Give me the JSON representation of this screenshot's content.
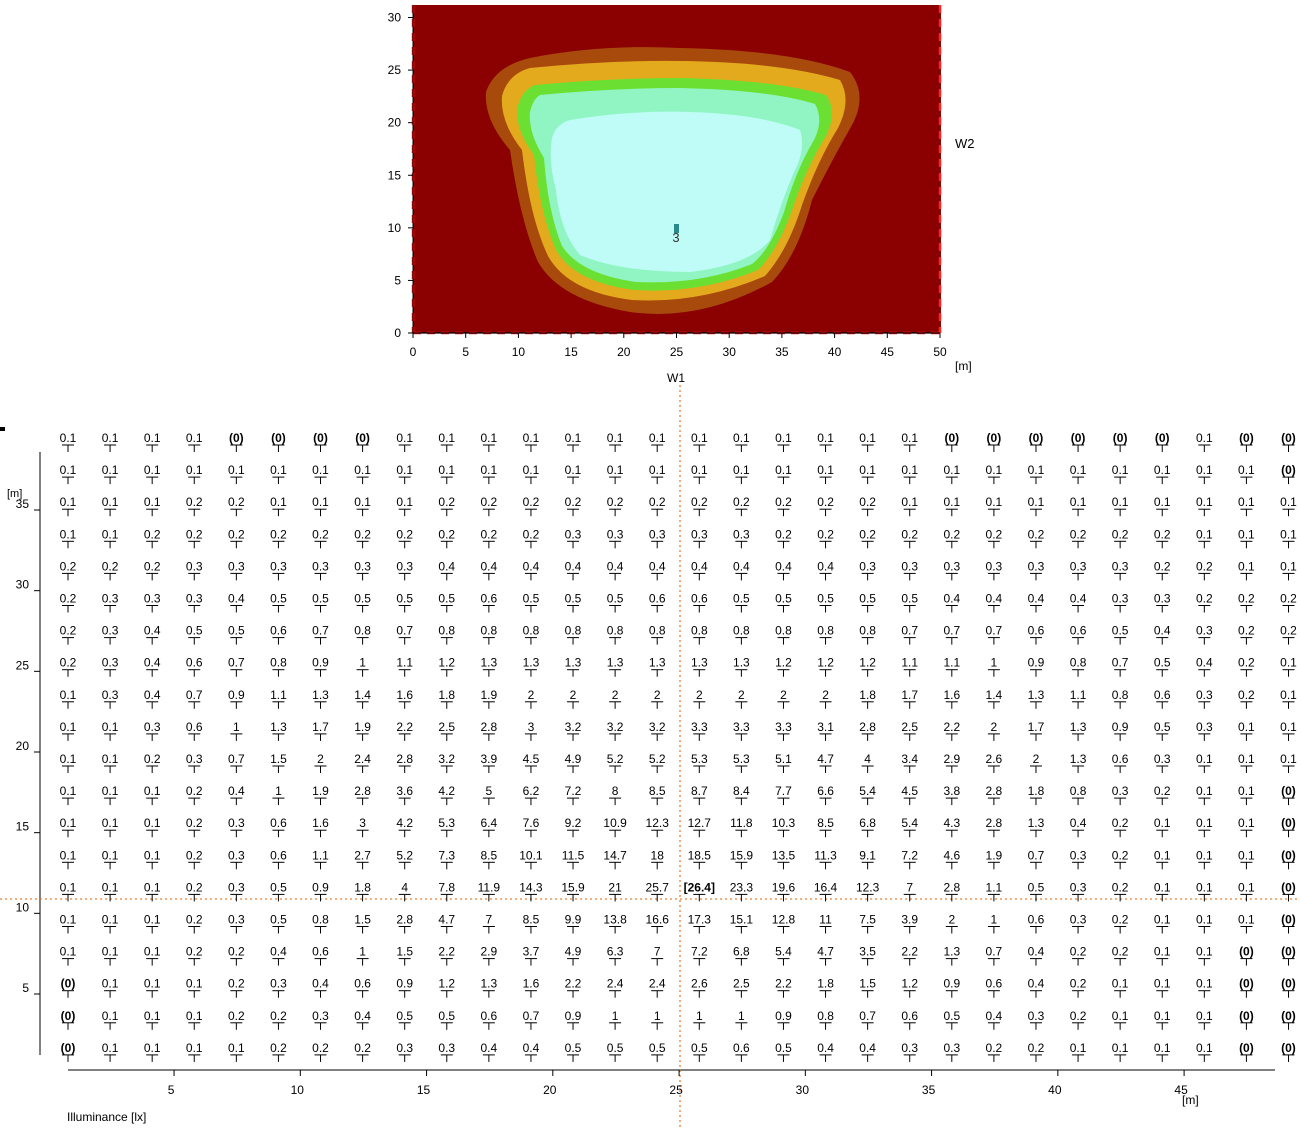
{
  "chart_data": [
    {
      "type": "heatmap",
      "title": "",
      "x_ticks": [
        "0",
        "5",
        "10",
        "15",
        "20",
        "25",
        "30",
        "35",
        "40",
        "45",
        "50"
      ],
      "y_ticks": [
        "0",
        "5",
        "10",
        "15",
        "20",
        "25",
        "30"
      ],
      "unit_label": "[m]",
      "wall_labels": {
        "bottom": "W1",
        "right": "W2"
      },
      "xlim": [
        0,
        50
      ],
      "ylim": [
        0,
        31
      ],
      "source_label": "3",
      "source_position": [
        25,
        10
      ],
      "color_levels": [
        "#8b0000",
        "#a84a0c",
        "#e4aa1d",
        "#6be032",
        "#90f5c3",
        "#bffcf7"
      ]
    },
    {
      "type": "table",
      "title": "",
      "xlabel": "Illuminance [lx]",
      "unit_label": "[m]",
      "x_ticks": [
        "5",
        "10",
        "15",
        "20",
        "25",
        "30",
        "35",
        "40",
        "45"
      ],
      "y_ticks": [
        "5",
        "10",
        "15",
        "20",
        "25",
        "30",
        "35"
      ],
      "columns_x_start": 0.8,
      "columns_x_step": 1.6667,
      "grid_rows": [
        [
          "0.1",
          "0.1",
          "0.1",
          "0.1",
          "(0)",
          "(0)",
          "(0)",
          "(0)",
          "0.1",
          "0.1",
          "0.1",
          "0.1",
          "0.1",
          "0.1",
          "0.1",
          "0.1",
          "0.1",
          "0.1",
          "0.1",
          "0.1",
          "0.1",
          "(0)",
          "(0)",
          "(0)",
          "(0)",
          "(0)",
          "(0)",
          "0.1",
          "(0)",
          "(0)"
        ],
        [
          "0.1",
          "0.1",
          "0.1",
          "0.1",
          "0.1",
          "0.1",
          "0.1",
          "0.1",
          "0.1",
          "0.1",
          "0.1",
          "0.1",
          "0.1",
          "0.1",
          "0.1",
          "0.1",
          "0.1",
          "0.1",
          "0.1",
          "0.1",
          "0.1",
          "0.1",
          "0.1",
          "0.1",
          "0.1",
          "0.1",
          "0.1",
          "0.1",
          "0.1",
          "(0)"
        ],
        [
          "0.1",
          "0.1",
          "0.1",
          "0.2",
          "0.2",
          "0.1",
          "0.1",
          "0.1",
          "0.1",
          "0.2",
          "0.2",
          "0.2",
          "0.2",
          "0.2",
          "0.2",
          "0.2",
          "0.2",
          "0.2",
          "0.2",
          "0.2",
          "0.1",
          "0.1",
          "0.1",
          "0.1",
          "0.1",
          "0.1",
          "0.1",
          "0.1",
          "0.1",
          "0.1"
        ],
        [
          "0.1",
          "0.1",
          "0.2",
          "0.2",
          "0.2",
          "0.2",
          "0.2",
          "0.2",
          "0.2",
          "0.2",
          "0.2",
          "0.2",
          "0.3",
          "0.3",
          "0.3",
          "0.3",
          "0.3",
          "0.2",
          "0.2",
          "0.2",
          "0.2",
          "0.2",
          "0.2",
          "0.2",
          "0.2",
          "0.2",
          "0.2",
          "0.1",
          "0.1",
          "0.1"
        ],
        [
          "0.2",
          "0.2",
          "0.2",
          "0.3",
          "0.3",
          "0.3",
          "0.3",
          "0.3",
          "0.3",
          "0.4",
          "0.4",
          "0.4",
          "0.4",
          "0.4",
          "0.4",
          "0.4",
          "0.4",
          "0.4",
          "0.4",
          "0.3",
          "0.3",
          "0.3",
          "0.3",
          "0.3",
          "0.3",
          "0.3",
          "0.2",
          "0.2",
          "0.1",
          "0.1"
        ],
        [
          "0.2",
          "0.3",
          "0.3",
          "0.3",
          "0.4",
          "0.5",
          "0.5",
          "0.5",
          "0.5",
          "0.5",
          "0.6",
          "0.5",
          "0.5",
          "0.5",
          "0.6",
          "0.6",
          "0.5",
          "0.5",
          "0.5",
          "0.5",
          "0.5",
          "0.4",
          "0.4",
          "0.4",
          "0.4",
          "0.3",
          "0.3",
          "0.2",
          "0.2",
          "0.2"
        ],
        [
          "0.2",
          "0.3",
          "0.4",
          "0.5",
          "0.5",
          "0.6",
          "0.7",
          "0.8",
          "0.7",
          "0.8",
          "0.8",
          "0.8",
          "0.8",
          "0.8",
          "0.8",
          "0.8",
          "0.8",
          "0.8",
          "0.8",
          "0.8",
          "0.7",
          "0.7",
          "0.7",
          "0.6",
          "0.6",
          "0.5",
          "0.4",
          "0.3",
          "0.2",
          "0.2"
        ],
        [
          "0.2",
          "0.3",
          "0.4",
          "0.6",
          "0.7",
          "0.8",
          "0.9",
          "1",
          "1.1",
          "1.2",
          "1.3",
          "1.3",
          "1.3",
          "1.3",
          "1.3",
          "1.3",
          "1.3",
          "1.2",
          "1.2",
          "1.2",
          "1.1",
          "1.1",
          "1",
          "0.9",
          "0.8",
          "0.7",
          "0.5",
          "0.4",
          "0.2",
          "0.1"
        ],
        [
          "0.1",
          "0.3",
          "0.4",
          "0.7",
          "0.9",
          "1.1",
          "1.3",
          "1.4",
          "1.6",
          "1.8",
          "1.9",
          "2",
          "2",
          "2",
          "2",
          "2",
          "2",
          "2",
          "2",
          "1.8",
          "1.7",
          "1.6",
          "1.4",
          "1.3",
          "1.1",
          "0.8",
          "0.6",
          "0.3",
          "0.2",
          "0.1"
        ],
        [
          "0.1",
          "0.1",
          "0.3",
          "0.6",
          "1",
          "1.3",
          "1.7",
          "1.9",
          "2.2",
          "2.5",
          "2.8",
          "3",
          "3.2",
          "3.2",
          "3.2",
          "3.3",
          "3.3",
          "3.3",
          "3.1",
          "2.8",
          "2.5",
          "2.2",
          "2",
          "1.7",
          "1.3",
          "0.9",
          "0.5",
          "0.3",
          "0.1",
          "0.1"
        ],
        [
          "0.1",
          "0.1",
          "0.2",
          "0.3",
          "0.7",
          "1.5",
          "2",
          "2.4",
          "2.8",
          "3.2",
          "3.9",
          "4.5",
          "4.9",
          "5.2",
          "5.2",
          "5.3",
          "5.3",
          "5.1",
          "4.7",
          "4",
          "3.4",
          "2.9",
          "2.6",
          "2",
          "1.3",
          "0.6",
          "0.3",
          "0.1",
          "0.1",
          "0.1"
        ],
        [
          "0.1",
          "0.1",
          "0.1",
          "0.2",
          "0.4",
          "1",
          "1.9",
          "2.8",
          "3.6",
          "4.2",
          "5",
          "6.2",
          "7.2",
          "8",
          "8.5",
          "8.7",
          "8.4",
          "7.7",
          "6.6",
          "5.4",
          "4.5",
          "3.8",
          "2.8",
          "1.8",
          "0.8",
          "0.3",
          "0.2",
          "0.1",
          "0.1",
          "(0)"
        ],
        [
          "0.1",
          "0.1",
          "0.1",
          "0.2",
          "0.3",
          "0.6",
          "1.6",
          "3",
          "4.2",
          "5.3",
          "6.4",
          "7.6",
          "9.2",
          "10.9",
          "12.3",
          "12.7",
          "11.8",
          "10.3",
          "8.5",
          "6.8",
          "5.4",
          "4.3",
          "2.8",
          "1.3",
          "0.4",
          "0.2",
          "0.1",
          "0.1",
          "0.1",
          "(0)"
        ],
        [
          "0.1",
          "0.1",
          "0.1",
          "0.2",
          "0.3",
          "0.6",
          "1.1",
          "2.7",
          "5.2",
          "7.3",
          "8.5",
          "10.1",
          "11.5",
          "14.7",
          "18",
          "18.5",
          "15.9",
          "13.5",
          "11.3",
          "9.1",
          "7.2",
          "4.6",
          "1.9",
          "0.7",
          "0.3",
          "0.2",
          "0.1",
          "0.1",
          "0.1",
          "(0)"
        ],
        [
          "0.1",
          "0.1",
          "0.1",
          "0.2",
          "0.3",
          "0.5",
          "0.9",
          "1.8",
          "4",
          "7.8",
          "11.9",
          "14.3",
          "15.9",
          "21",
          "25.7",
          "[26.4]",
          "23.3",
          "19.6",
          "16.4",
          "12.3",
          "7",
          "2.8",
          "1.1",
          "0.5",
          "0.3",
          "0.2",
          "0.1",
          "0.1",
          "0.1",
          "(0)"
        ],
        [
          "0.1",
          "0.1",
          "0.1",
          "0.2",
          "0.3",
          "0.5",
          "0.8",
          "1.5",
          "2.8",
          "4.7",
          "7",
          "8.5",
          "9.9",
          "13.8",
          "16.6",
          "17.3",
          "15.1",
          "12.8",
          "11",
          "7.5",
          "3.9",
          "2",
          "1",
          "0.6",
          "0.3",
          "0.2",
          "0.1",
          "0.1",
          "0.1",
          "(0)"
        ],
        [
          "0.1",
          "0.1",
          "0.1",
          "0.2",
          "0.2",
          "0.4",
          "0.6",
          "1",
          "1.5",
          "2.2",
          "2.9",
          "3.7",
          "4.9",
          "6.3",
          "7",
          "7.2",
          "6.8",
          "5.4",
          "4.7",
          "3.5",
          "2.2",
          "1.3",
          "0.7",
          "0.4",
          "0.2",
          "0.2",
          "0.1",
          "0.1",
          "(0)",
          "(0)"
        ],
        [
          "(0)",
          "0.1",
          "0.1",
          "0.1",
          "0.2",
          "0.3",
          "0.4",
          "0.6",
          "0.9",
          "1.2",
          "1.3",
          "1.6",
          "2.2",
          "2.4",
          "2.4",
          "2.6",
          "2.5",
          "2.2",
          "1.8",
          "1.5",
          "1.2",
          "0.9",
          "0.6",
          "0.4",
          "0.2",
          "0.1",
          "0.1",
          "0.1",
          "(0)",
          "(0)"
        ],
        [
          "(0)",
          "0.1",
          "0.1",
          "0.1",
          "0.2",
          "0.2",
          "0.3",
          "0.4",
          "0.5",
          "0.5",
          "0.6",
          "0.7",
          "0.9",
          "1",
          "1",
          "1",
          "1",
          "0.9",
          "0.8",
          "0.7",
          "0.6",
          "0.5",
          "0.4",
          "0.3",
          "0.2",
          "0.1",
          "0.1",
          "0.1",
          "(0)",
          "(0)"
        ],
        [
          "(0)",
          "0.1",
          "0.1",
          "0.1",
          "0.1",
          "0.2",
          "0.2",
          "0.2",
          "0.3",
          "0.3",
          "0.4",
          "0.4",
          "0.5",
          "0.5",
          "0.5",
          "0.5",
          "0.6",
          "0.5",
          "0.4",
          "0.4",
          "0.3",
          "0.3",
          "0.2",
          "0.2",
          "0.1",
          "0.1",
          "0.1",
          "0.1",
          "(0)",
          "(0)"
        ]
      ]
    }
  ]
}
